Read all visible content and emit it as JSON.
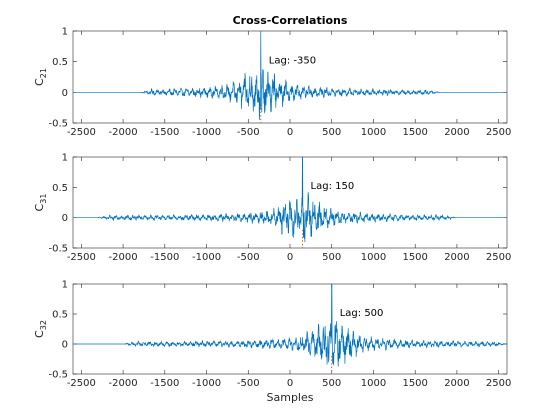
{
  "chart_data": [
    {
      "type": "line",
      "title": "Cross-Correlations",
      "ylabel": "C",
      "ylabel_sub": "21",
      "xlabel": "",
      "xlim": [
        -2600,
        2600
      ],
      "ylim": [
        -0.5,
        1
      ],
      "xticks": [
        -2500,
        -2000,
        -1500,
        -1000,
        -500,
        0,
        500,
        1000,
        1500,
        2000,
        2500
      ],
      "yticks": [
        -0.5,
        0,
        0.5,
        1
      ],
      "peak_lag": -350,
      "peak_value": 1,
      "signal_extent": [
        -1800,
        1800
      ],
      "annotation": "Lag: -350",
      "line_color": "#0072BD",
      "marker_color": "#D95319"
    },
    {
      "type": "line",
      "title": "",
      "ylabel": "C",
      "ylabel_sub": "31",
      "xlabel": "",
      "xlim": [
        -2600,
        2600
      ],
      "ylim": [
        -0.5,
        1
      ],
      "xticks": [
        -2500,
        -2000,
        -1500,
        -1000,
        -500,
        0,
        500,
        1000,
        1500,
        2000,
        2500
      ],
      "yticks": [
        -0.5,
        0,
        0.5,
        1
      ],
      "peak_lag": 150,
      "peak_value": 1,
      "signal_extent": [
        -2300,
        2000
      ],
      "annotation": "Lag: 150",
      "line_color": "#0072BD",
      "marker_color": "#D95319"
    },
    {
      "type": "line",
      "title": "",
      "ylabel": "C",
      "ylabel_sub": "32",
      "xlabel": "Samples",
      "xlim": [
        -2600,
        2600
      ],
      "ylim": [
        -0.5,
        1
      ],
      "xticks": [
        -2500,
        -2000,
        -1500,
        -1000,
        -500,
        0,
        500,
        1000,
        1500,
        2000,
        2500
      ],
      "yticks": [
        -0.5,
        0,
        0.5,
        1
      ],
      "peak_lag": 500,
      "peak_value": 1,
      "signal_extent": [
        -2000,
        2600
      ],
      "annotation": "Lag: 500",
      "line_color": "#0072BD",
      "marker_color": "#D95319"
    }
  ]
}
